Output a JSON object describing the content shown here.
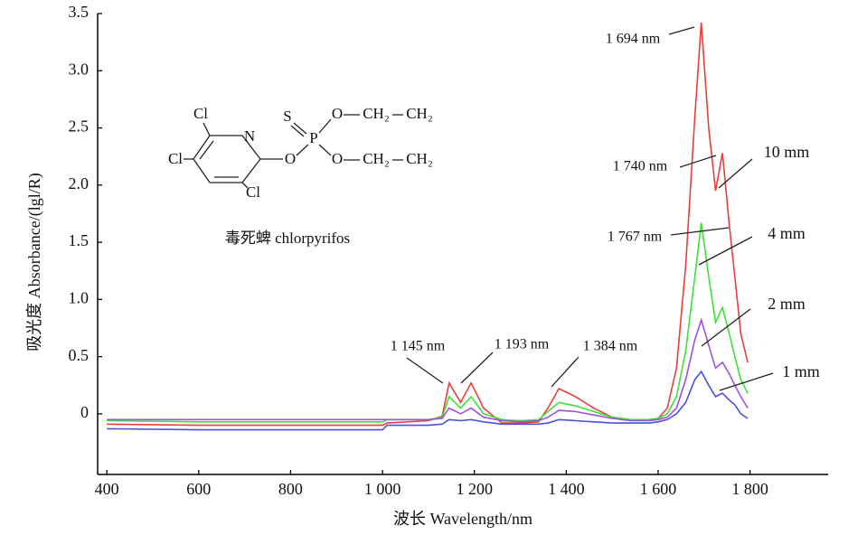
{
  "chart_data": {
    "type": "line",
    "xlabel": "波长 Wavelength/nm",
    "ylabel": "吸光度 Absorbance/(lgl/R)",
    "xlim": [
      380,
      1970
    ],
    "ylim": [
      -0.53,
      3.5
    ],
    "xticks": [
      400,
      600,
      800,
      {
        "value": 1000,
        "label": "1 000"
      },
      {
        "value": 1200,
        "label": "1 200"
      },
      {
        "value": 1400,
        "label": "1 400"
      },
      {
        "value": 1600,
        "label": "1 600"
      },
      {
        "value": 1800,
        "label": "1 800"
      }
    ],
    "yticks": [
      0,
      0.5,
      {
        "value": 1,
        "label": "1.0"
      },
      1.5,
      {
        "value": 2,
        "label": "2.0"
      },
      2.5,
      {
        "value": 3,
        "label": "3.0"
      },
      3.5
    ],
    "x": [
      400,
      600,
      800,
      1000,
      1010,
      1100,
      1130,
      1145,
      1170,
      1193,
      1220,
      1260,
      1300,
      1340,
      1360,
      1384,
      1420,
      1460,
      1500,
      1540,
      1580,
      1600,
      1620,
      1640,
      1660,
      1680,
      1694,
      1710,
      1725,
      1740,
      1755,
      1767,
      1780,
      1795
    ],
    "series": [
      {
        "name": "10 mm",
        "color": "#e8403a",
        "values": [
          -0.09,
          -0.1,
          -0.1,
          -0.1,
          -0.08,
          -0.06,
          -0.02,
          0.27,
          0.1,
          0.27,
          0.05,
          -0.08,
          -0.08,
          -0.07,
          0.05,
          0.22,
          0.15,
          0.05,
          -0.03,
          -0.05,
          -0.05,
          -0.04,
          0.05,
          0.4,
          1.3,
          2.6,
          3.42,
          2.5,
          1.95,
          2.28,
          1.65,
          1.2,
          0.7,
          0.45
        ]
      },
      {
        "name": "4 mm",
        "color": "#3ee03a",
        "values": [
          -0.06,
          -0.07,
          -0.07,
          -0.07,
          -0.05,
          -0.05,
          -0.03,
          0.15,
          0.05,
          0.15,
          0.0,
          -0.05,
          -0.06,
          -0.05,
          0.02,
          0.1,
          0.07,
          0.02,
          -0.03,
          -0.05,
          -0.05,
          -0.04,
          0.0,
          0.15,
          0.55,
          1.2,
          1.67,
          1.2,
          0.8,
          0.93,
          0.7,
          0.5,
          0.3,
          0.18
        ]
      },
      {
        "name": "2 mm",
        "color": "#a050e0",
        "values": [
          -0.05,
          -0.05,
          -0.05,
          -0.05,
          -0.05,
          -0.05,
          -0.04,
          0.05,
          0.0,
          0.05,
          -0.03,
          -0.06,
          -0.07,
          -0.06,
          -0.03,
          0.03,
          0.02,
          -0.01,
          -0.04,
          -0.06,
          -0.06,
          -0.05,
          -0.03,
          0.05,
          0.3,
          0.65,
          0.82,
          0.6,
          0.4,
          0.45,
          0.35,
          0.25,
          0.15,
          0.05
        ]
      },
      {
        "name": "1 mm",
        "color": "#4a50e0",
        "values": [
          -0.13,
          -0.14,
          -0.14,
          -0.14,
          -0.1,
          -0.1,
          -0.09,
          -0.05,
          -0.06,
          -0.05,
          -0.07,
          -0.09,
          -0.09,
          -0.09,
          -0.08,
          -0.05,
          -0.06,
          -0.07,
          -0.08,
          -0.08,
          -0.08,
          -0.07,
          -0.05,
          0.0,
          0.1,
          0.3,
          0.37,
          0.25,
          0.15,
          0.18,
          0.12,
          0.08,
          0.0,
          -0.04
        ]
      }
    ],
    "annotations": [
      "1 145 nm",
      "1 193 nm",
      "1 384 nm",
      "1 694 nm",
      "1 740 nm",
      "1 767 nm"
    ],
    "structure": {
      "caption": "毒死蜱  chlorpyrifos",
      "atoms": [
        "Cl",
        "N",
        "Cl",
        "Cl",
        "O",
        "S",
        "P",
        "O",
        "O",
        "CH₂",
        "CH₂",
        "CH₂",
        "CH₂"
      ]
    }
  }
}
